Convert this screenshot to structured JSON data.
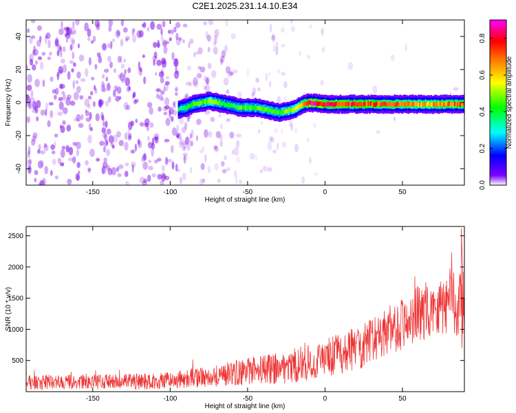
{
  "title": "C2E1.2025.231.14.10.E34",
  "colors": {
    "noise": "#7a00e8",
    "snr_line": "#ee3333",
    "colorbar": [
      "#ffffff",
      "#7b00ff",
      "#0000ff",
      "#00ffff",
      "#00ff00",
      "#ffff00",
      "#ff8000",
      "#ff0000",
      "#ff00ff"
    ]
  },
  "chart_data": [
    {
      "type": "heatmap",
      "xlabel": "Height of straight line (km)",
      "ylabel": "Frequency (Hz)",
      "xlim": [
        -193,
        90
      ],
      "ylim": [
        -50,
        50
      ],
      "xticks": [
        -150,
        -100,
        -50,
        0,
        50
      ],
      "yticks": [
        -40,
        -20,
        0,
        20,
        40
      ],
      "colorbar": {
        "label": "Normalized spectral amplitude",
        "range": [
          0,
          0.9
        ],
        "ticks": [
          "0.0",
          "0.2",
          "0.4",
          "0.6",
          "0.8"
        ]
      },
      "signal_track": {
        "x": [
          -95,
          -90,
          -85,
          -80,
          -75,
          -70,
          -65,
          -60,
          -55,
          -50,
          -45,
          -40,
          -35,
          -30,
          -25,
          -20,
          -15,
          -10,
          0,
          20,
          40,
          60,
          80,
          90
        ],
        "frequency": [
          -4,
          -3,
          -1,
          0,
          1,
          0,
          -1,
          -2,
          -3,
          -3,
          -3,
          -4,
          -5,
          -6,
          -5,
          -4,
          -1,
          0,
          -1,
          -1,
          -1,
          -1,
          -1,
          -1
        ],
        "peak_amplitude": [
          0.35,
          0.4,
          0.45,
          0.45,
          0.5,
          0.45,
          0.4,
          0.4,
          0.45,
          0.45,
          0.45,
          0.45,
          0.45,
          0.45,
          0.5,
          0.55,
          0.7,
          0.85,
          0.8,
          0.75,
          0.7,
          0.65,
          0.7,
          0.75
        ]
      },
      "noise_region_x": [
        -193,
        -95
      ]
    },
    {
      "type": "line",
      "xlabel": "Height of straight line (km)",
      "ylabel": "SNR (10 * v/v)",
      "xlim": [
        -193,
        90
      ],
      "ylim": [
        0,
        2650
      ],
      "xticks": [
        -150,
        -100,
        -50,
        0,
        50
      ],
      "yticks": [
        500,
        1000,
        1500,
        2000,
        2500
      ],
      "series": [
        {
          "x": [
            -190,
            -180,
            -170,
            -160,
            -150,
            -140,
            -130,
            -120,
            -110,
            -100,
            -90,
            -80,
            -70,
            -60,
            -50,
            -40,
            -30,
            -20,
            -10,
            0,
            10,
            20,
            30,
            40,
            50,
            60,
            70,
            80,
            85,
            90
          ],
          "values": [
            150,
            150,
            155,
            150,
            155,
            160,
            160,
            165,
            170,
            180,
            200,
            230,
            260,
            290,
            320,
            360,
            380,
            420,
            460,
            520,
            600,
            700,
            800,
            950,
            1100,
            1250,
            1350,
            1450,
            1500,
            1450
          ],
          "spread": [
            120,
            120,
            120,
            120,
            120,
            120,
            120,
            130,
            130,
            140,
            150,
            160,
            180,
            200,
            220,
            240,
            260,
            280,
            300,
            320,
            340,
            360,
            380,
            400,
            420,
            450,
            480,
            520,
            650,
            500
          ]
        }
      ]
    }
  ]
}
